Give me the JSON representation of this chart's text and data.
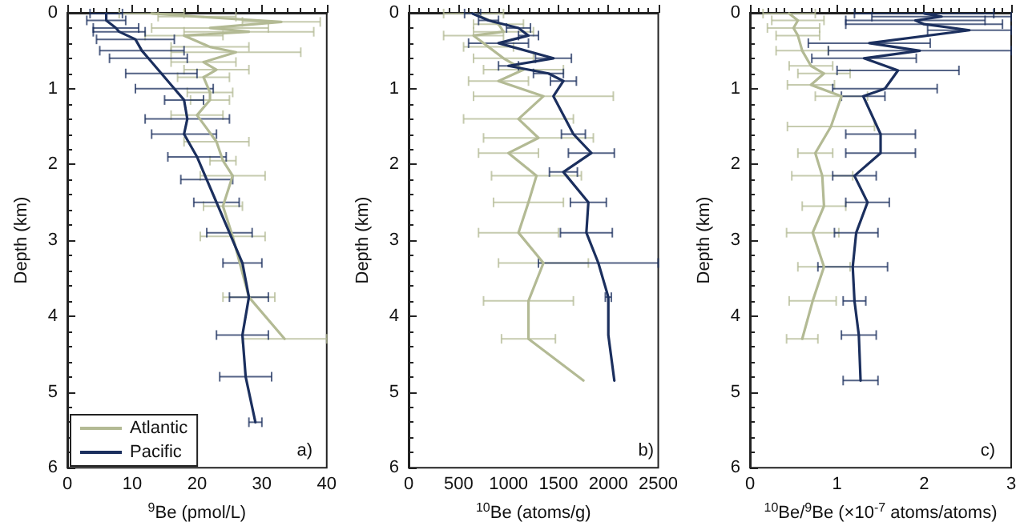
{
  "chart_data": [
    {
      "type": "line",
      "xlabel": "$^{9}$Be (pmol/L)",
      "ylabel": "Depth (km)",
      "xlim": [
        0,
        40
      ],
      "xticks": [
        0,
        10,
        20,
        30,
        40
      ],
      "ylim": [
        6,
        0
      ],
      "yticks": [
        0,
        1,
        2,
        3,
        4,
        5,
        6
      ],
      "grid": false,
      "legend": "bottom left",
      "marker": "none",
      "line_style": "solid",
      "annotations": [
        "a)"
      ],
      "series": [
        {
          "name": "Atlantic",
          "color": "#b3ba94",
          "x": [
            13,
            20,
            33,
            22,
            28,
            18,
            22,
            26,
            21,
            23,
            21,
            22,
            22,
            20,
            23,
            24,
            25.5,
            24,
            25.5,
            28,
            33.5
          ],
          "values": [
            0.01,
            0.05,
            0.12,
            0.2,
            0.25,
            0.3,
            0.45,
            0.52,
            0.65,
            0.75,
            0.85,
            1.05,
            1.15,
            1.35,
            1.7,
            1.95,
            2.15,
            2.55,
            2.95,
            3.75,
            4.3
          ],
          "xerrors": [
            5,
            6,
            6,
            9,
            10,
            6,
            6,
            10,
            5,
            5,
            4,
            3.5,
            3,
            4,
            5,
            2,
            5,
            3,
            5,
            4,
            6.5
          ]
        },
        {
          "name": "Pacific",
          "color": "#1b2f5e",
          "x": [
            6,
            6,
            7.5,
            8,
            10.5,
            11.5,
            12.5,
            14.5,
            16.5,
            18,
            18.5,
            18,
            20,
            21.5,
            23,
            25,
            27,
            28,
            27,
            27.5,
            29
          ],
          "values": [
            0.01,
            0.1,
            0.2,
            0.25,
            0.35,
            0.5,
            0.6,
            0.8,
            1.0,
            1.15,
            1.4,
            1.6,
            1.9,
            2.2,
            2.5,
            2.9,
            3.3,
            3.75,
            4.25,
            4.8,
            5.4
          ],
          "xerrors": [
            2.5,
            3,
            3.5,
            4,
            6,
            6.5,
            6,
            5.5,
            6,
            3,
            6.5,
            5,
            4.5,
            4,
            3.5,
            3.5,
            3,
            3,
            4,
            4,
            1
          ]
        }
      ]
    },
    {
      "type": "line",
      "xlabel": "$^{10}$Be (atoms/g)",
      "ylabel": "Depth (km)",
      "xlim": [
        0,
        2500
      ],
      "xticks": [
        0,
        500,
        1000,
        1500,
        2000,
        2500
      ],
      "ylim": [
        6,
        0
      ],
      "yticks": [
        0,
        1,
        2,
        3,
        4,
        5,
        6
      ],
      "grid": false,
      "legend": false,
      "marker": "none",
      "line_style": "solid",
      "annotations": [
        "b)"
      ],
      "series": [
        {
          "color": "#b3ba94",
          "x": [
            650,
            900,
            950,
            650,
            800,
            950,
            1150,
            900,
            1350,
            1100,
            1300,
            1000,
            1280,
            1200,
            1100,
            1350,
            1200,
            1200,
            1750
          ],
          "values": [
            0.01,
            0.15,
            0.25,
            0.3,
            0.45,
            0.6,
            0.75,
            0.9,
            1.1,
            1.4,
            1.65,
            1.85,
            2.15,
            2.5,
            2.9,
            3.3,
            3.8,
            4.3,
            4.85
          ],
          "xerrors": [
            300,
            250,
            300,
            300,
            250,
            300,
            400,
            300,
            700,
            550,
            550,
            300,
            450,
            350,
            400,
            450,
            450,
            270,
            null
          ]
        },
        {
          "color": "#1b2f5e",
          "x": [
            640,
            800,
            1100,
            1200,
            900,
            1450,
            1000,
            1400,
            1550,
            1450,
            1650,
            1830,
            1550,
            1800,
            1780,
            1900,
            2000,
            2000,
            2060
          ],
          "values": [
            0.01,
            0.1,
            0.2,
            0.3,
            0.4,
            0.6,
            0.7,
            0.8,
            0.9,
            1.1,
            1.6,
            1.85,
            2.1,
            2.5,
            2.9,
            3.3,
            3.75,
            4.25,
            4.85
          ],
          "xerrors": [
            80,
            100,
            120,
            100,
            300,
            180,
            100,
            150,
            130,
            null,
            120,
            230,
            140,
            180,
            260,
            600,
            30,
            null,
            null
          ]
        }
      ]
    },
    {
      "type": "line",
      "xlabel": "$^{10}$Be/$^{9}$Be (×10$^{-7}$ atoms/atoms)",
      "ylabel": "Depth (km)",
      "xlim": [
        0,
        3
      ],
      "xticks": [
        0,
        1,
        2,
        3
      ],
      "ylim": [
        6,
        0
      ],
      "yticks": [
        0,
        1,
        2,
        3,
        4,
        5,
        6
      ],
      "grid": false,
      "legend": false,
      "marker": "none",
      "line_style": "solid",
      "annotations": [
        "c)"
      ],
      "series": [
        {
          "color": "#b3ba94",
          "x": [
            0.45,
            0.55,
            0.5,
            0.55,
            0.6,
            0.7,
            0.85,
            0.7,
            1.05,
            0.93,
            0.75,
            0.83,
            0.85,
            0.72,
            0.85,
            0.72,
            0.6
          ],
          "values": [
            0.01,
            0.1,
            0.2,
            0.3,
            0.5,
            0.7,
            0.8,
            0.95,
            1.1,
            1.5,
            1.85,
            2.15,
            2.55,
            2.9,
            3.35,
            3.8,
            4.3
          ],
          "xerrors": [
            0.3,
            0.3,
            0.3,
            0.25,
            0.3,
            0.25,
            0.3,
            0.27,
            0.3,
            0.5,
            0.2,
            0.35,
            0.25,
            0.3,
            0.3,
            0.27,
            0.18
          ]
        },
        {
          "color": "#1b2f5e",
          "x": [
            2.0,
            2.2,
            1.9,
            2.0,
            2.52,
            1.37,
            1.95,
            1.31,
            1.7,
            1.55,
            1.3,
            1.5,
            1.5,
            1.2,
            1.35,
            1.22,
            1.18,
            1.2,
            1.25,
            1.27
          ],
          "values": [
            0.01,
            0.05,
            0.1,
            0.15,
            0.23,
            0.4,
            0.5,
            0.6,
            0.76,
            1.0,
            1.1,
            1.6,
            1.85,
            2.15,
            2.5,
            2.9,
            3.35,
            3.8,
            4.25,
            4.85
          ],
          "xerrors": [
            0.8,
            0.8,
            0.8,
            0.9,
            0.48,
            0.7,
            1.05,
            0.6,
            0.7,
            0.6,
            0.25,
            0.4,
            0.4,
            0.25,
            0.25,
            0.25,
            0.4,
            0.13,
            0.2,
            0.2
          ]
        }
      ]
    }
  ]
}
